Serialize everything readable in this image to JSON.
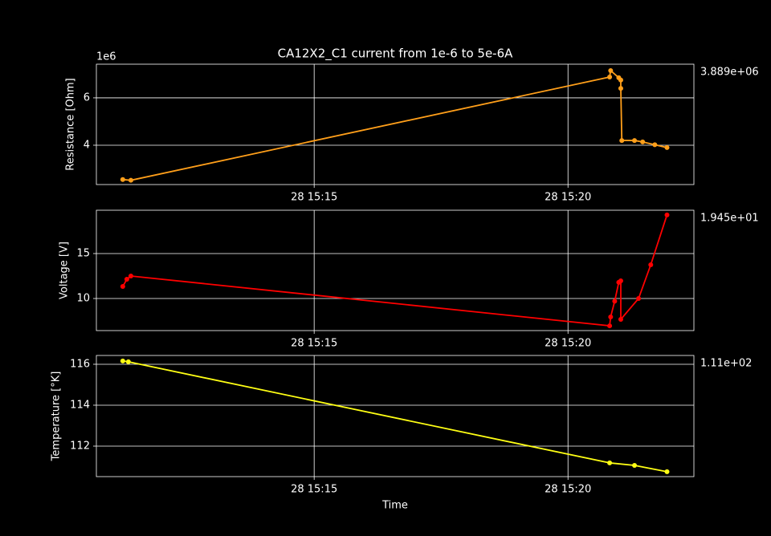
{
  "chart_data": [
    {
      "type": "line",
      "title": "CA12X2_C1 current from 1e-6 to 5e-6A",
      "ylabel": "Resistance [Ohm]",
      "offset_label": "1e6",
      "annotation": "3.889e+06",
      "x": [
        11.23,
        11.39,
        20.82,
        20.84,
        21.0,
        21.04,
        21.04,
        21.06,
        21.31,
        21.47,
        21.71,
        21.95
      ],
      "values": [
        2.55,
        2.52,
        6.88,
        7.15,
        6.85,
        6.75,
        6.4,
        4.2,
        4.2,
        4.14,
        4.02,
        3.9
      ],
      "color": "#ff9f1a",
      "xlim": [
        10.71,
        22.48
      ],
      "ylim": [
        2.34,
        7.42
      ],
      "xticks": [
        {
          "value": 15,
          "label": "28 15:15"
        },
        {
          "value": 20,
          "label": "28 15:20"
        }
      ],
      "yticks": [
        4,
        6
      ],
      "grid": true
    },
    {
      "type": "line",
      "ylabel": "Voltage [V]",
      "annotation": "1.945e+01",
      "x": [
        11.23,
        11.31,
        11.39,
        20.82,
        20.84,
        20.92,
        21.0,
        21.04,
        21.04,
        21.39,
        21.63,
        21.95
      ],
      "values": [
        11.34,
        12.14,
        12.5,
        6.96,
        7.95,
        9.7,
        11.8,
        11.96,
        7.68,
        10,
        13.75,
        19.3
      ],
      "color": "#ff0000",
      "xlim": [
        10.71,
        22.48
      ],
      "ylim": [
        6.43,
        19.82
      ],
      "xticks": [
        {
          "value": 15,
          "label": "28 15:15"
        },
        {
          "value": 20,
          "label": "28 15:20"
        }
      ],
      "yticks": [
        10,
        15
      ],
      "grid": true
    },
    {
      "type": "line",
      "ylabel": "Temperature [°K]",
      "xlabel": "Time",
      "annotation": "1.11e+02",
      "x": [
        11.23,
        11.34,
        20.82,
        21.31,
        21.95
      ],
      "values": [
        116.16,
        116.12,
        111.18,
        111.06,
        110.75
      ],
      "color": "#ffff14",
      "xlim": [
        10.71,
        22.48
      ],
      "ylim": [
        110.51,
        116.43
      ],
      "xticks": [
        {
          "value": 15,
          "label": "28 15:15"
        },
        {
          "value": 20,
          "label": "28 15:20"
        }
      ],
      "yticks": [
        112,
        114,
        116
      ],
      "grid": true
    }
  ]
}
